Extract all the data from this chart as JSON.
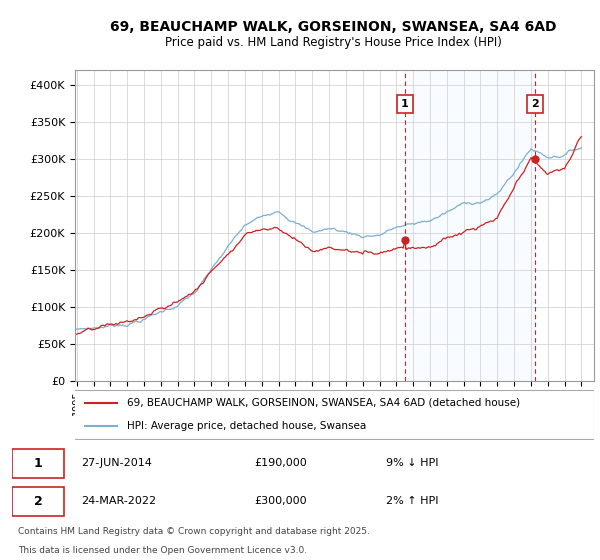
{
  "title_line1": "69, BEAUCHAMP WALK, GORSEINON, SWANSEA, SA4 6AD",
  "title_line2": "Price paid vs. HM Land Registry's House Price Index (HPI)",
  "ylabel_ticks": [
    "£0",
    "£50K",
    "£100K",
    "£150K",
    "£200K",
    "£250K",
    "£300K",
    "£350K",
    "£400K"
  ],
  "ytick_values": [
    0,
    50000,
    100000,
    150000,
    200000,
    250000,
    300000,
    350000,
    400000
  ],
  "ylim": [
    0,
    420000
  ],
  "xlim_start": 1995.0,
  "xlim_end": 2025.75,
  "xtick_years": [
    1995,
    1996,
    1997,
    1998,
    1999,
    2000,
    2001,
    2002,
    2003,
    2004,
    2005,
    2006,
    2007,
    2008,
    2009,
    2010,
    2011,
    2012,
    2013,
    2014,
    2015,
    2016,
    2017,
    2018,
    2019,
    2020,
    2021,
    2022,
    2023,
    2024,
    2025
  ],
  "hpi_color": "#7bafd4",
  "price_color": "#cc2222",
  "vline_color": "#cc2222",
  "shade_color": "#ddeeff",
  "background_color": "#ffffff",
  "grid_color": "#cccccc",
  "sale1_date": "27-JUN-2014",
  "sale1_price": 190000,
  "sale1_pct": "9% ↓ HPI",
  "sale1_year": 2014.5,
  "sale2_date": "24-MAR-2022",
  "sale2_price": 300000,
  "sale2_pct": "2% ↑ HPI",
  "sale2_year": 2022.25,
  "sale1_price_val": 190000,
  "sale2_price_val": 300000,
  "legend_line1": "69, BEAUCHAMP WALK, GORSEINON, SWANSEA, SA4 6AD (detached house)",
  "legend_line2": "HPI: Average price, detached house, Swansea",
  "footer_line1": "Contains HM Land Registry data © Crown copyright and database right 2025.",
  "footer_line2": "This data is licensed under the Open Government Licence v3.0."
}
